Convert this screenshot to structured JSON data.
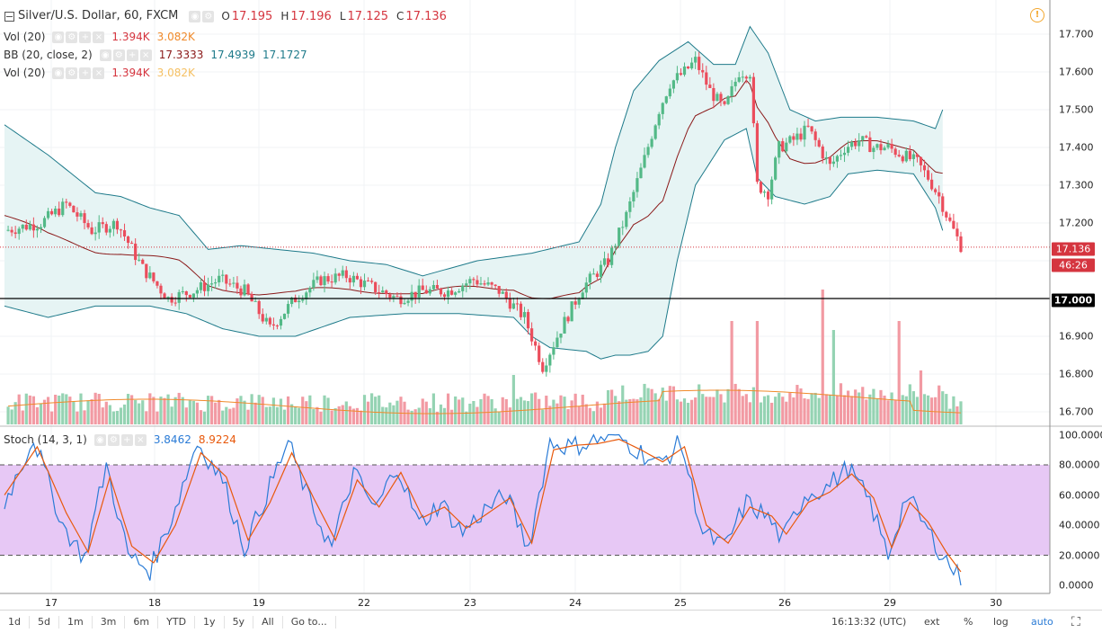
{
  "legend": {
    "symbol_title": "Silver/U.S. Dollar, 60, FXCM",
    "ohlc": [
      {
        "label": "O",
        "value": "17.195"
      },
      {
        "label": "H",
        "value": "17.196"
      },
      {
        "label": "L",
        "value": "17.125"
      },
      {
        "label": "C",
        "value": "17.136"
      }
    ],
    "studies": [
      {
        "title": "Vol (20)",
        "values": [
          {
            "text": "1.394K",
            "color": "#d5353f"
          },
          {
            "text": "3.082K",
            "color": "#f08a2b"
          }
        ]
      },
      {
        "title": "BB (20, close, 2)",
        "values": [
          {
            "text": "17.3333",
            "color": "#8b1a1a"
          },
          {
            "text": "17.4939",
            "color": "#1e7a8a"
          },
          {
            "text": "17.1727",
            "color": "#1e7a8a"
          }
        ]
      },
      {
        "title": "Vol (20)",
        "values": [
          {
            "text": "1.394K",
            "color": "#d5353f"
          },
          {
            "text": "3.082K",
            "color": "#f5c063"
          }
        ]
      }
    ],
    "stoch": {
      "title": "Stoch (14, 3, 1)",
      "values": [
        {
          "text": "3.8462",
          "color": "#2a7bd6"
        },
        {
          "text": "8.9224",
          "color": "#e8590c"
        }
      ]
    }
  },
  "price_axis": {
    "ticks": [
      "17.700",
      "17.600",
      "17.500",
      "17.400",
      "17.300",
      "17.200",
      "16.900",
      "16.800",
      "16.700"
    ]
  },
  "price_boxes": {
    "last": "17.136",
    "countdown": "46:26",
    "level": "17.000"
  },
  "stoch_axis": {
    "ticks": [
      "100.0000",
      "80.0000",
      "60.0000",
      "40.0000",
      "20.0000",
      "0.0000"
    ]
  },
  "time_axis": {
    "ticks": [
      "17",
      "18",
      "19",
      "22",
      "23",
      "24",
      "25",
      "26",
      "29",
      "30"
    ]
  },
  "toolbar": {
    "ranges": [
      "1d",
      "5d",
      "1m",
      "3m",
      "6m",
      "YTD",
      "1y",
      "5y",
      "All"
    ],
    "goto": "Go to...",
    "clock": "16:13:32 (UTC)",
    "ext": "ext",
    "percent": "%",
    "log": "log",
    "auto": "auto"
  },
  "colors": {
    "up": "#53b987",
    "down": "#eb4d5c",
    "bb_fill": "#e6f4f4",
    "bb_line": "#1e7a8a",
    "bb_mid": "#8b1a1a",
    "stoch_band": "#e7c8f5",
    "k": "#2a7bd6",
    "d": "#e8590c",
    "vol_ma": "#f08a2b",
    "last_price": "#d5353f"
  },
  "chart_data": {
    "type": "candlestick",
    "title": "Silver/U.S. Dollar, 60, FXCM",
    "x_labels": [
      "17",
      "18",
      "19",
      "22",
      "23",
      "24",
      "25",
      "26",
      "29",
      "30"
    ],
    "ylim": [
      16.65,
      17.73
    ],
    "horizontal_line": 17.0,
    "last_price": 17.136,
    "close_path_approx": [
      [
        0,
        17.18
      ],
      [
        10,
        17.2
      ],
      [
        17,
        17.25
      ],
      [
        24,
        17.18
      ],
      [
        31,
        17.2
      ],
      [
        38,
        17.08
      ],
      [
        45,
        17.0
      ],
      [
        52,
        17.02
      ],
      [
        59,
        17.05
      ],
      [
        66,
        17.02
      ],
      [
        73,
        16.92
      ],
      [
        80,
        17.0
      ],
      [
        87,
        17.05
      ],
      [
        94,
        17.06
      ],
      [
        101,
        17.03
      ],
      [
        108,
        17.0
      ],
      [
        115,
        17.02
      ],
      [
        122,
        17.02
      ],
      [
        129,
        17.05
      ],
      [
        136,
        17.02
      ],
      [
        143,
        16.95
      ],
      [
        148,
        16.82
      ],
      [
        153,
        16.92
      ],
      [
        159,
        17.03
      ],
      [
        166,
        17.1
      ],
      [
        171,
        17.22
      ],
      [
        176,
        17.37
      ],
      [
        180,
        17.5
      ],
      [
        183,
        17.57
      ],
      [
        187,
        17.6
      ],
      [
        190,
        17.63
      ],
      [
        194,
        17.55
      ],
      [
        198,
        17.5
      ],
      [
        202,
        17.6
      ],
      [
        205,
        17.6
      ],
      [
        207,
        17.3
      ],
      [
        210,
        17.28
      ],
      [
        213,
        17.4
      ],
      [
        217,
        17.42
      ],
      [
        221,
        17.45
      ],
      [
        224,
        17.4
      ],
      [
        227,
        17.35
      ],
      [
        231,
        17.4
      ],
      [
        235,
        17.42
      ],
      [
        239,
        17.4
      ],
      [
        243,
        17.4
      ],
      [
        247,
        17.38
      ],
      [
        251,
        17.36
      ],
      [
        254,
        17.32
      ],
      [
        257,
        17.27
      ],
      [
        260,
        17.2
      ],
      [
        263,
        17.14
      ]
    ],
    "bb_upper_approx": [
      [
        0,
        17.46
      ],
      [
        12,
        17.38
      ],
      [
        25,
        17.28
      ],
      [
        32,
        17.27
      ],
      [
        40,
        17.24
      ],
      [
        48,
        17.22
      ],
      [
        56,
        17.13
      ],
      [
        65,
        17.14
      ],
      [
        75,
        17.13
      ],
      [
        85,
        17.12
      ],
      [
        95,
        17.1
      ],
      [
        105,
        17.09
      ],
      [
        115,
        17.06
      ],
      [
        130,
        17.1
      ],
      [
        145,
        17.12
      ],
      [
        158,
        17.15
      ],
      [
        164,
        17.25
      ],
      [
        168,
        17.4
      ],
      [
        173,
        17.55
      ],
      [
        180,
        17.63
      ],
      [
        188,
        17.68
      ],
      [
        195,
        17.62
      ],
      [
        201,
        17.62
      ],
      [
        205,
        17.72
      ],
      [
        210,
        17.65
      ],
      [
        216,
        17.5
      ],
      [
        223,
        17.47
      ],
      [
        230,
        17.48
      ],
      [
        240,
        17.48
      ],
      [
        250,
        17.47
      ],
      [
        256,
        17.45
      ],
      [
        258,
        17.5
      ]
    ],
    "bb_lower_approx": [
      [
        0,
        16.98
      ],
      [
        12,
        16.95
      ],
      [
        25,
        16.98
      ],
      [
        40,
        16.98
      ],
      [
        50,
        16.96
      ],
      [
        60,
        16.92
      ],
      [
        70,
        16.9
      ],
      [
        80,
        16.9
      ],
      [
        95,
        16.95
      ],
      [
        110,
        16.96
      ],
      [
        125,
        16.96
      ],
      [
        140,
        16.95
      ],
      [
        145,
        16.9
      ],
      [
        150,
        16.87
      ],
      [
        160,
        16.86
      ],
      [
        164,
        16.84
      ],
      [
        168,
        16.85
      ],
      [
        172,
        16.85
      ],
      [
        177,
        16.86
      ],
      [
        181,
        16.9
      ],
      [
        185,
        17.1
      ],
      [
        190,
        17.3
      ],
      [
        198,
        17.42
      ],
      [
        204,
        17.45
      ],
      [
        207,
        17.32
      ],
      [
        212,
        17.27
      ],
      [
        220,
        17.25
      ],
      [
        227,
        17.27
      ],
      [
        232,
        17.33
      ],
      [
        240,
        17.34
      ],
      [
        250,
        17.33
      ],
      [
        256,
        17.24
      ],
      [
        258,
        17.18
      ]
    ],
    "stochastic": {
      "k_path_approx": [
        [
          0,
          55
        ],
        [
          8,
          98
        ],
        [
          16,
          40
        ],
        [
          22,
          18
        ],
        [
          28,
          80
        ],
        [
          34,
          20
        ],
        [
          40,
          10
        ],
        [
          46,
          45
        ],
        [
          53,
          95
        ],
        [
          60,
          70
        ],
        [
          66,
          25
        ],
        [
          72,
          60
        ],
        [
          78,
          95
        ],
        [
          84,
          55
        ],
        [
          90,
          25
        ],
        [
          96,
          75
        ],
        [
          102,
          50
        ],
        [
          108,
          80
        ],
        [
          114,
          40
        ],
        [
          120,
          55
        ],
        [
          126,
          35
        ],
        [
          132,
          50
        ],
        [
          138,
          60
        ],
        [
          144,
          25
        ],
        [
          150,
          95
        ],
        [
          156,
          92
        ],
        [
          162,
          96
        ],
        [
          168,
          100
        ],
        [
          174,
          90
        ],
        [
          180,
          80
        ],
        [
          186,
          95
        ],
        [
          192,
          35
        ],
        [
          198,
          25
        ],
        [
          204,
          55
        ],
        [
          210,
          45
        ],
        [
          214,
          30
        ],
        [
          220,
          60
        ],
        [
          226,
          65
        ],
        [
          232,
          78
        ],
        [
          238,
          55
        ],
        [
          243,
          20
        ],
        [
          248,
          60
        ],
        [
          253,
          40
        ],
        [
          258,
          20
        ],
        [
          263,
          4
        ]
      ],
      "d_path_approx": [
        [
          0,
          60
        ],
        [
          9,
          92
        ],
        [
          17,
          48
        ],
        [
          23,
          22
        ],
        [
          29,
          72
        ],
        [
          35,
          26
        ],
        [
          41,
          15
        ],
        [
          47,
          40
        ],
        [
          54,
          88
        ],
        [
          61,
          72
        ],
        [
          67,
          30
        ],
        [
          73,
          55
        ],
        [
          79,
          88
        ],
        [
          85,
          58
        ],
        [
          91,
          30
        ],
        [
          97,
          70
        ],
        [
          103,
          52
        ],
        [
          109,
          75
        ],
        [
          115,
          45
        ],
        [
          121,
          52
        ],
        [
          127,
          38
        ],
        [
          133,
          48
        ],
        [
          139,
          58
        ],
        [
          145,
          28
        ],
        [
          151,
          90
        ],
        [
          157,
          93
        ],
        [
          163,
          94
        ],
        [
          169,
          97
        ],
        [
          175,
          90
        ],
        [
          181,
          82
        ],
        [
          187,
          92
        ],
        [
          193,
          40
        ],
        [
          199,
          28
        ],
        [
          205,
          52
        ],
        [
          211,
          46
        ],
        [
          215,
          34
        ],
        [
          221,
          55
        ],
        [
          227,
          62
        ],
        [
          233,
          74
        ],
        [
          239,
          58
        ],
        [
          244,
          25
        ],
        [
          249,
          55
        ],
        [
          254,
          42
        ],
        [
          259,
          22
        ],
        [
          263,
          9
        ]
      ],
      "upper": 80,
      "lower": 20,
      "ylim": [
        0,
        100
      ]
    }
  }
}
